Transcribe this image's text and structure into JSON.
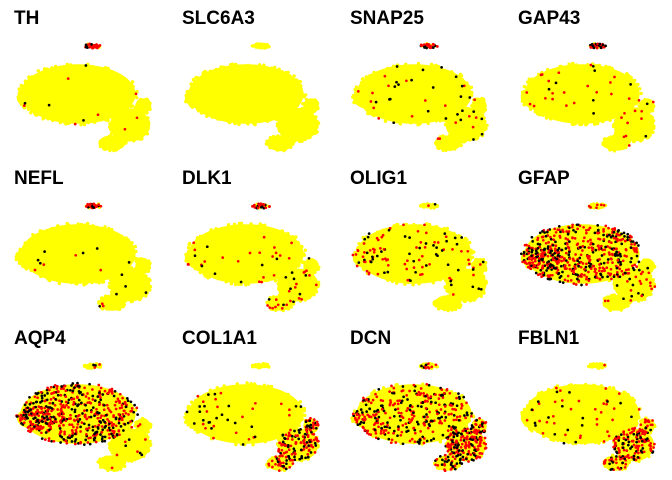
{
  "chart_data": {
    "type": "scatter",
    "description_layout": "grid-3x4",
    "color_scale": {
      "low": "#FFFF00",
      "mid": "#FF0000",
      "high": "#000000"
    },
    "panels": [
      {
        "gene": "TH",
        "expression": {
          "main": 0.02,
          "lower": 0.01,
          "top": 0.85,
          "left": 0.02,
          "bottom": 0.01,
          "right": 0.02
        }
      },
      {
        "gene": "SLC6A3",
        "expression": {
          "main": 0.0,
          "lower": 0.0,
          "top": 0.0,
          "left": 0.0,
          "bottom": 0.0,
          "right": 0.0
        }
      },
      {
        "gene": "SNAP25",
        "expression": {
          "main": 0.04,
          "lower": 0.03,
          "top": 0.9,
          "left": 0.05,
          "bottom": 0.03,
          "right": 0.05
        }
      },
      {
        "gene": "GAP43",
        "expression": {
          "main": 0.05,
          "lower": 0.05,
          "top": 0.95,
          "left": 0.05,
          "bottom": 0.04,
          "right": 0.05
        }
      },
      {
        "gene": "NEFL",
        "expression": {
          "main": 0.02,
          "lower": 0.02,
          "top": 0.75,
          "left": 0.02,
          "bottom": 0.02,
          "right": 0.02
        }
      },
      {
        "gene": "DLK1",
        "expression": {
          "main": 0.05,
          "lower": 0.1,
          "top": 0.9,
          "left": 0.05,
          "bottom": 0.15,
          "right": 0.08
        }
      },
      {
        "gene": "OLIG1",
        "expression": {
          "main": 0.15,
          "lower": 0.04,
          "top": 0.05,
          "left": 0.2,
          "bottom": 0.02,
          "right": 0.03
        }
      },
      {
        "gene": "GFAP",
        "expression": {
          "main": 0.92,
          "lower": 0.15,
          "top": 0.1,
          "left": 0.9,
          "bottom": 0.05,
          "right": 0.1
        }
      },
      {
        "gene": "AQP4",
        "expression": {
          "main": 0.93,
          "lower": 0.05,
          "top": 0.2,
          "left": 0.9,
          "bottom": 0.03,
          "right": 0.05
        }
      },
      {
        "gene": "COL1A1",
        "expression": {
          "main": 0.05,
          "lower": 0.65,
          "top": 0.02,
          "left": 0.05,
          "bottom": 0.5,
          "right": 0.6
        }
      },
      {
        "gene": "DCN",
        "expression": {
          "main": 0.55,
          "lower": 0.97,
          "top": 0.3,
          "left": 0.4,
          "bottom": 0.6,
          "right": 0.8
        }
      },
      {
        "gene": "FBLN1",
        "expression": {
          "main": 0.1,
          "lower": 0.7,
          "top": 0.05,
          "left": 0.08,
          "bottom": 0.45,
          "right": 0.55
        }
      }
    ]
  }
}
